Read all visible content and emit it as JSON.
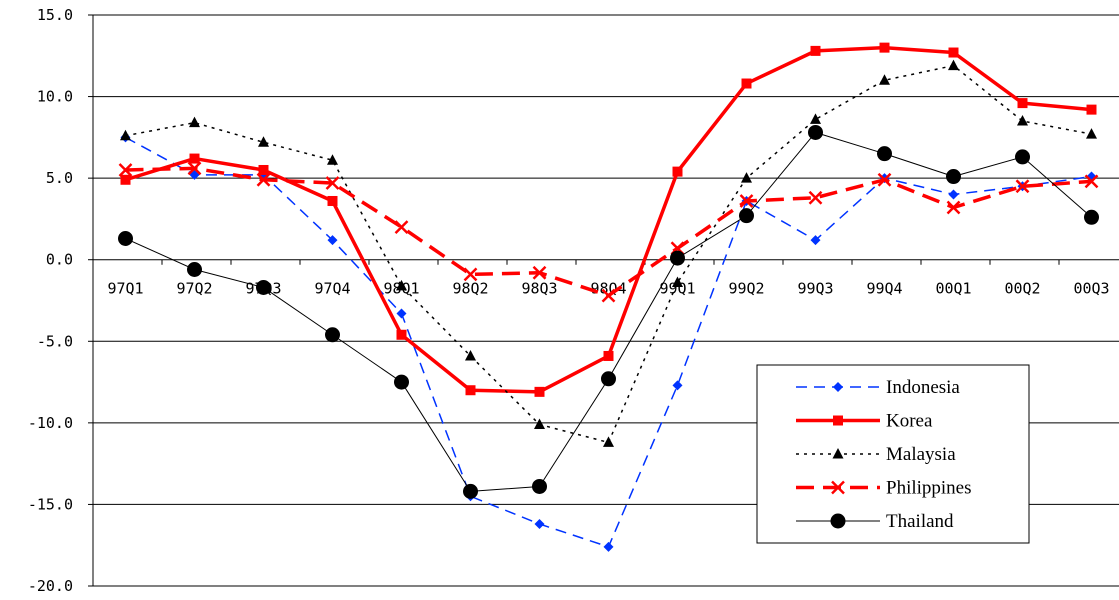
{
  "chart_data": {
    "type": "line",
    "categories": [
      "97Q1",
      "97Q2",
      "97Q3",
      "97Q4",
      "98Q1",
      "98Q2",
      "98Q3",
      "98Q4",
      "99Q1",
      "99Q2",
      "99Q3",
      "99Q4",
      "00Q1",
      "00Q2",
      "00Q3"
    ],
    "ylim": [
      -20,
      15
    ],
    "yticks": [
      15,
      10,
      5,
      0,
      -5,
      -10,
      -15,
      -20
    ],
    "ytick_labels": [
      "15.0",
      "10.0",
      "5.0",
      "0.0",
      "-5.0",
      "-10.0",
      "-15.0",
      "-20.0"
    ],
    "grid": true,
    "legend_position": "bottom-right",
    "series": [
      {
        "name": "Indonesia",
        "color": "#0033ff",
        "dash": "long-dash",
        "marker": "diamond",
        "width": 1.5,
        "values": [
          7.5,
          5.2,
          5.2,
          1.2,
          -3.3,
          -14.5,
          -16.2,
          -17.6,
          -7.7,
          3.6,
          1.2,
          5.0,
          4.0,
          4.5,
          5.1
        ]
      },
      {
        "name": "Korea",
        "color": "#ff0000",
        "dash": "solid",
        "marker": "square",
        "width": 3.5,
        "values": [
          4.9,
          6.2,
          5.5,
          3.6,
          -4.6,
          -8.0,
          -8.1,
          -5.9,
          5.4,
          10.8,
          12.8,
          13.0,
          12.7,
          9.6,
          9.2
        ]
      },
      {
        "name": "Malaysia",
        "color": "#000000",
        "dash": "dotted",
        "marker": "triangle",
        "width": 1.5,
        "values": [
          7.6,
          8.4,
          7.2,
          6.1,
          -1.6,
          -5.9,
          -10.1,
          -11.2,
          -1.4,
          5.0,
          8.6,
          11.0,
          11.9,
          8.5,
          7.7
        ]
      },
      {
        "name": "Philippines",
        "color": "#ff0000",
        "dash": "heavy-dash",
        "marker": "x",
        "width": 3.5,
        "values": [
          5.5,
          5.6,
          4.9,
          4.7,
          2.0,
          -0.9,
          -0.8,
          -2.2,
          0.7,
          3.6,
          3.8,
          4.9,
          3.2,
          4.5,
          4.8
        ]
      },
      {
        "name": "Thailand",
        "color": "#000000",
        "dash": "solid",
        "marker": "circle",
        "width": 1,
        "values": [
          1.3,
          -0.6,
          -1.7,
          -4.6,
          -7.5,
          -14.2,
          -13.9,
          -7.3,
          0.1,
          2.7,
          7.8,
          6.5,
          5.1,
          6.3,
          2.6
        ]
      }
    ]
  }
}
